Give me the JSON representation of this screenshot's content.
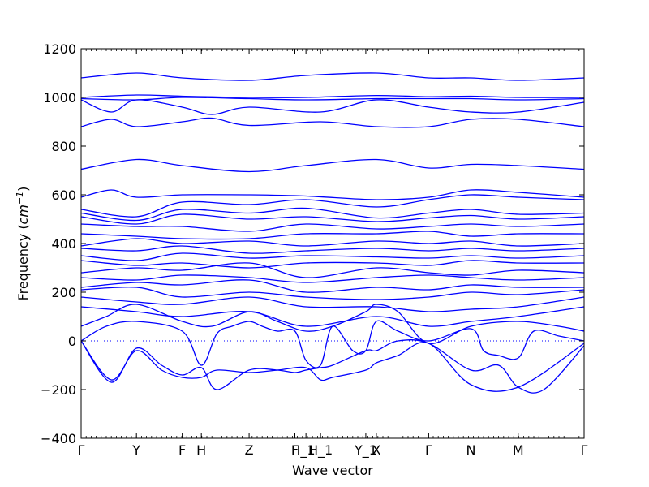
{
  "chart_data": {
    "type": "line",
    "xlabel": "Wave vector",
    "ylabel": "Frequency (cm⁻¹)",
    "ylabel_unit": "cm",
    "ylabel_unit_exp": "−1",
    "ylim": [
      -400,
      1200
    ],
    "yticks": [
      -400,
      -200,
      0,
      200,
      400,
      600,
      800,
      1000,
      1200
    ],
    "xlim": [
      0,
      100
    ],
    "grid": false,
    "line_color": "#0000ff",
    "zero_line": {
      "y": 0,
      "style": "dotted",
      "color": "#0000ff"
    },
    "high_symmetry_points": [
      {
        "label": "Γ",
        "x": 0
      },
      {
        "label": "Y",
        "x": 11
      },
      {
        "label": "F",
        "x": 20.1
      },
      {
        "label": "H",
        "x": 23.9
      },
      {
        "label": "Z",
        "x": 33.4
      },
      {
        "label": "F",
        "x": 42.5
      },
      {
        "label": "I_1",
        "x": 44.7
      },
      {
        "label": "H_1",
        "x": 47.6
      },
      {
        "label": "Y_1",
        "x": 56.6
      },
      {
        "label": "X",
        "x": 58.7
      },
      {
        "label": "Γ",
        "x": 69.1
      },
      {
        "label": "N",
        "x": 77.5
      },
      {
        "label": "M",
        "x": 86.9
      },
      {
        "label": "Γ",
        "x": 100
      }
    ],
    "series": [
      {
        "x": [
          0,
          11,
          20.1,
          33.4,
          44.7,
          58.7,
          69.1,
          77.5,
          86.9,
          100
        ],
        "values": [
          1080,
          1100,
          1080,
          1070,
          1090,
          1100,
          1080,
          1080,
          1070,
          1080
        ]
      },
      {
        "x": [
          0,
          11,
          20.1,
          33.4,
          44.7,
          58.7,
          69.1,
          77.5,
          86.9,
          100
        ],
        "values": [
          1000,
          1010,
          1005,
          1000,
          1000,
          1008,
          1003,
          1005,
          1000,
          1000
        ]
      },
      {
        "x": [
          0,
          11,
          20.1,
          33.4,
          44.7,
          58.7,
          69.1,
          77.5,
          86.9,
          100
        ],
        "values": [
          995,
          990,
          1000,
          995,
          990,
          995,
          995,
          995,
          990,
          995
        ]
      },
      {
        "x": [
          0,
          6,
          11,
          20.1,
          26,
          33.4,
          47.6,
          58.7,
          69.1,
          77.5,
          86.9,
          100
        ],
        "values": [
          990,
          940,
          990,
          960,
          930,
          960,
          940,
          990,
          960,
          940,
          940,
          980
        ]
      },
      {
        "x": [
          0,
          6,
          11,
          20.1,
          26,
          33.4,
          47.6,
          58.7,
          69.1,
          77.5,
          86.9,
          100
        ],
        "values": [
          880,
          910,
          880,
          900,
          915,
          885,
          900,
          880,
          880,
          910,
          910,
          880
        ]
      },
      {
        "x": [
          0,
          11,
          20.1,
          33.4,
          44.7,
          58.7,
          69.1,
          77.5,
          86.9,
          100
        ],
        "values": [
          705,
          745,
          720,
          695,
          720,
          745,
          710,
          725,
          720,
          705
        ]
      },
      {
        "x": [
          0,
          6,
          11,
          20.1,
          33.4,
          44.7,
          58.7,
          69.1,
          77.5,
          86.9,
          100
        ],
        "values": [
          590,
          620,
          590,
          600,
          600,
          595,
          580,
          590,
          620,
          610,
          590
        ]
      },
      {
        "x": [
          0,
          11,
          20.1,
          33.4,
          44.7,
          58.7,
          69.1,
          77.5,
          86.9,
          100
        ],
        "values": [
          540,
          510,
          570,
          560,
          580,
          550,
          580,
          600,
          590,
          580
        ]
      },
      {
        "x": [
          0,
          11,
          20.1,
          33.4,
          44.7,
          58.7,
          69.1,
          77.5,
          86.9,
          100
        ],
        "values": [
          525,
          495,
          540,
          525,
          545,
          505,
          525,
          540,
          520,
          525
        ]
      },
      {
        "x": [
          0,
          11,
          20.1,
          33.4,
          44.7,
          58.7,
          69.1,
          77.5,
          86.9,
          100
        ],
        "values": [
          510,
          480,
          520,
          500,
          510,
          490,
          505,
          515,
          500,
          510
        ]
      },
      {
        "x": [
          0,
          11,
          20.1,
          33.4,
          44.7,
          58.7,
          69.1,
          77.5,
          86.9,
          100
        ],
        "values": [
          480,
          470,
          470,
          450,
          480,
          460,
          470,
          480,
          470,
          480
        ]
      },
      {
        "x": [
          0,
          11,
          20.1,
          33.4,
          44.7,
          58.7,
          69.1,
          77.5,
          86.9,
          100
        ],
        "values": [
          440,
          430,
          420,
          420,
          440,
          440,
          450,
          430,
          440,
          440
        ]
      },
      {
        "x": [
          0,
          11,
          20.1,
          33.4,
          44.7,
          58.7,
          69.1,
          77.5,
          86.9,
          100
        ],
        "values": [
          390,
          420,
          400,
          410,
          390,
          410,
          400,
          410,
          390,
          400
        ]
      },
      {
        "x": [
          0,
          11,
          20.1,
          33.4,
          44.7,
          58.7,
          69.1,
          77.5,
          86.9,
          100
        ],
        "values": [
          380,
          370,
          390,
          360,
          370,
          380,
          370,
          380,
          370,
          380
        ]
      },
      {
        "x": [
          0,
          11,
          20.1,
          33.4,
          44.7,
          58.7,
          69.1,
          77.5,
          86.9,
          100
        ],
        "values": [
          350,
          330,
          360,
          340,
          350,
          345,
          340,
          350,
          340,
          350
        ]
      },
      {
        "x": [
          0,
          11,
          20.1,
          33.4,
          44.7,
          58.7,
          69.1,
          77.5,
          86.9,
          100
        ],
        "values": [
          330,
          310,
          320,
          300,
          320,
          320,
          310,
          330,
          320,
          320
        ]
      },
      {
        "x": [
          0,
          11,
          20.1,
          33.4,
          44.7,
          58.7,
          69.1,
          77.5,
          86.9,
          100
        ],
        "values": [
          280,
          300,
          290,
          320,
          260,
          300,
          280,
          270,
          290,
          280
        ]
      },
      {
        "x": [
          0,
          11,
          20.1,
          33.4,
          44.7,
          58.7,
          69.1,
          77.5,
          86.9,
          100
        ],
        "values": [
          260,
          250,
          270,
          260,
          240,
          260,
          270,
          260,
          250,
          260
        ]
      },
      {
        "x": [
          0,
          11,
          20.1,
          33.4,
          44.7,
          58.7,
          69.1,
          77.5,
          86.9,
          100
        ],
        "values": [
          220,
          240,
          230,
          250,
          200,
          220,
          210,
          230,
          220,
          220
        ]
      },
      {
        "x": [
          0,
          11,
          20.1,
          33.4,
          44.7,
          58.7,
          69.1,
          77.5,
          86.9,
          100
        ],
        "values": [
          210,
          220,
          180,
          200,
          180,
          170,
          180,
          200,
          190,
          210
        ]
      },
      {
        "x": [
          0,
          11,
          20.1,
          33.4,
          44.7,
          58.7,
          69.1,
          77.5,
          86.9,
          100
        ],
        "values": [
          180,
          160,
          150,
          180,
          140,
          140,
          120,
          130,
          140,
          180
        ]
      },
      {
        "x": [
          0,
          11,
          20.1,
          33.4,
          44.7,
          58.7,
          69.1,
          77.5,
          86.9,
          100
        ],
        "values": [
          140,
          120,
          100,
          120,
          60,
          100,
          60,
          80,
          100,
          140
        ]
      },
      {
        "x": [
          0,
          5,
          11,
          20.1,
          26,
          33.4,
          39,
          44.7,
          50,
          56.6,
          58.7,
          63,
          69.1,
          77.5,
          86.9,
          95,
          100
        ],
        "values": [
          60,
          100,
          150,
          80,
          60,
          120,
          80,
          40,
          60,
          120,
          150,
          120,
          -10,
          60,
          80,
          60,
          40
        ]
      },
      {
        "x": [
          0,
          5,
          11,
          20.1,
          23.9,
          27,
          30,
          33.4,
          36,
          39,
          42.5,
          44.7,
          47.6,
          50,
          54,
          56.6,
          58.7,
          63,
          69.1,
          77.5,
          80,
          83,
          86.9,
          90,
          95,
          100
        ],
        "values": [
          0,
          60,
          80,
          40,
          -100,
          30,
          60,
          80,
          60,
          40,
          40,
          -80,
          -100,
          60,
          -40,
          -40,
          80,
          40,
          0,
          50,
          -40,
          -60,
          -70,
          40,
          20,
          0
        ]
      },
      {
        "x": [
          0,
          6,
          11,
          16,
          20.1,
          23.9,
          27,
          33.4,
          39,
          44.7,
          47.6,
          50,
          56.6,
          58.7,
          63,
          69.1,
          77.5,
          86.9,
          100
        ],
        "values": [
          0,
          -160,
          -40,
          -120,
          -150,
          -150,
          -120,
          -130,
          -120,
          -110,
          -160,
          -150,
          -120,
          -90,
          -60,
          -10,
          -180,
          -190,
          -10
        ]
      },
      {
        "x": [
          0,
          6,
          11,
          16,
          20.1,
          23.9,
          27,
          33.4,
          39,
          42.5,
          44.7,
          47.6,
          50,
          56.6,
          58.7,
          63,
          69.1,
          77.5,
          83,
          86.9,
          92,
          100
        ],
        "values": [
          0,
          -170,
          -30,
          -100,
          -140,
          -110,
          -200,
          -120,
          -120,
          -130,
          -120,
          -110,
          -100,
          -40,
          -40,
          0,
          -10,
          -120,
          -100,
          -190,
          -200,
          -20
        ]
      }
    ]
  }
}
